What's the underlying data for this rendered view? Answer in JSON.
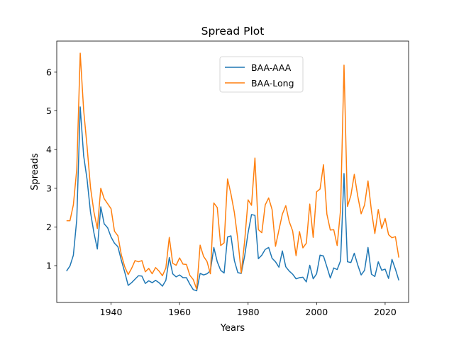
{
  "chart_data": {
    "type": "line",
    "title": "Spread Plot",
    "xlabel": "Years",
    "ylabel": "Spreads",
    "xlim": [
      1924.15,
      2026.85
    ],
    "ylim": [
      0.049,
      6.803
    ],
    "x_ticks": [
      1940,
      1960,
      1980,
      2000,
      2020
    ],
    "y_ticks": [
      1,
      2,
      3,
      4,
      5,
      6
    ],
    "grid": false,
    "legend_position": "upper-center",
    "x": [
      1927,
      1928,
      1929,
      1930,
      1931,
      1932,
      1933,
      1934,
      1935,
      1936,
      1937,
      1938,
      1939,
      1940,
      1941,
      1942,
      1943,
      1944,
      1945,
      1946,
      1947,
      1948,
      1949,
      1950,
      1951,
      1952,
      1953,
      1954,
      1955,
      1956,
      1957,
      1958,
      1959,
      1960,
      1961,
      1962,
      1963,
      1964,
      1965,
      1966,
      1967,
      1968,
      1969,
      1970,
      1971,
      1972,
      1973,
      1974,
      1975,
      1976,
      1977,
      1978,
      1979,
      1980,
      1981,
      1982,
      1983,
      1984,
      1985,
      1986,
      1987,
      1988,
      1989,
      1990,
      1991,
      1992,
      1993,
      1994,
      1995,
      1996,
      1997,
      1998,
      1999,
      2000,
      2001,
      2002,
      2003,
      2004,
      2005,
      2006,
      2007,
      2008,
      2009,
      2010,
      2011,
      2012,
      2013,
      2014,
      2015,
      2016,
      2017,
      2018,
      2019,
      2020,
      2021,
      2022,
      2023,
      2024
    ],
    "series": [
      {
        "name": "BAA-AAA",
        "color": "#1f77b4",
        "values": [
          0.86,
          0.99,
          1.27,
          2.2,
          5.1,
          3.84,
          3.23,
          2.38,
          1.85,
          1.43,
          2.52,
          2.08,
          1.98,
          1.74,
          1.58,
          1.49,
          1.14,
          0.83,
          0.49,
          0.56,
          0.65,
          0.74,
          0.73,
          0.54,
          0.61,
          0.56,
          0.62,
          0.56,
          0.47,
          0.62,
          1.21,
          0.79,
          0.71,
          0.76,
          0.69,
          0.69,
          0.52,
          0.38,
          0.35,
          0.8,
          0.76,
          0.79,
          0.87,
          1.47,
          1.1,
          0.88,
          0.81,
          1.74,
          1.77,
          1.13,
          0.82,
          0.8,
          1.25,
          1.85,
          2.32,
          2.3,
          1.18,
          1.27,
          1.42,
          1.47,
          1.19,
          1.1,
          0.96,
          1.38,
          0.97,
          0.86,
          0.78,
          0.66,
          0.69,
          0.7,
          0.58,
          1.01,
          0.66,
          0.79,
          1.27,
          1.25,
          0.97,
          0.68,
          0.94,
          0.9,
          1.13,
          3.38,
          1.1,
          1.08,
          1.32,
          1.02,
          0.76,
          0.88,
          1.47,
          0.78,
          0.72,
          1.1,
          0.88,
          0.91,
          0.67,
          1.16,
          0.91,
          0.62
        ]
      },
      {
        "name": "BAA-Long",
        "color": "#ff7f0e",
        "values": [
          2.16,
          2.16,
          2.57,
          3.5,
          6.49,
          5.02,
          4.08,
          3.02,
          2.39,
          1.96,
          3.0,
          2.73,
          2.6,
          2.47,
          1.89,
          1.77,
          1.28,
          0.97,
          0.77,
          0.93,
          1.13,
          1.1,
          1.13,
          0.84,
          0.93,
          0.79,
          0.95,
          0.86,
          0.74,
          0.94,
          1.73,
          1.06,
          1.01,
          1.2,
          1.04,
          1.03,
          0.75,
          0.64,
          0.39,
          1.53,
          1.24,
          1.11,
          0.79,
          2.62,
          2.5,
          1.52,
          1.59,
          3.24,
          2.85,
          2.37,
          1.68,
          0.81,
          1.64,
          2.7,
          2.56,
          3.78,
          1.93,
          1.85,
          2.57,
          2.75,
          2.45,
          1.5,
          1.92,
          2.33,
          2.55,
          2.14,
          1.9,
          1.26,
          1.88,
          1.46,
          1.58,
          2.59,
          1.73,
          2.91,
          2.98,
          3.61,
          2.33,
          1.92,
          1.93,
          1.52,
          2.45,
          6.18,
          2.53,
          2.81,
          3.36,
          2.8,
          2.34,
          2.57,
          3.19,
          2.42,
          1.83,
          2.45,
          1.96,
          2.22,
          1.8,
          1.72,
          1.75,
          1.21
        ]
      }
    ]
  }
}
